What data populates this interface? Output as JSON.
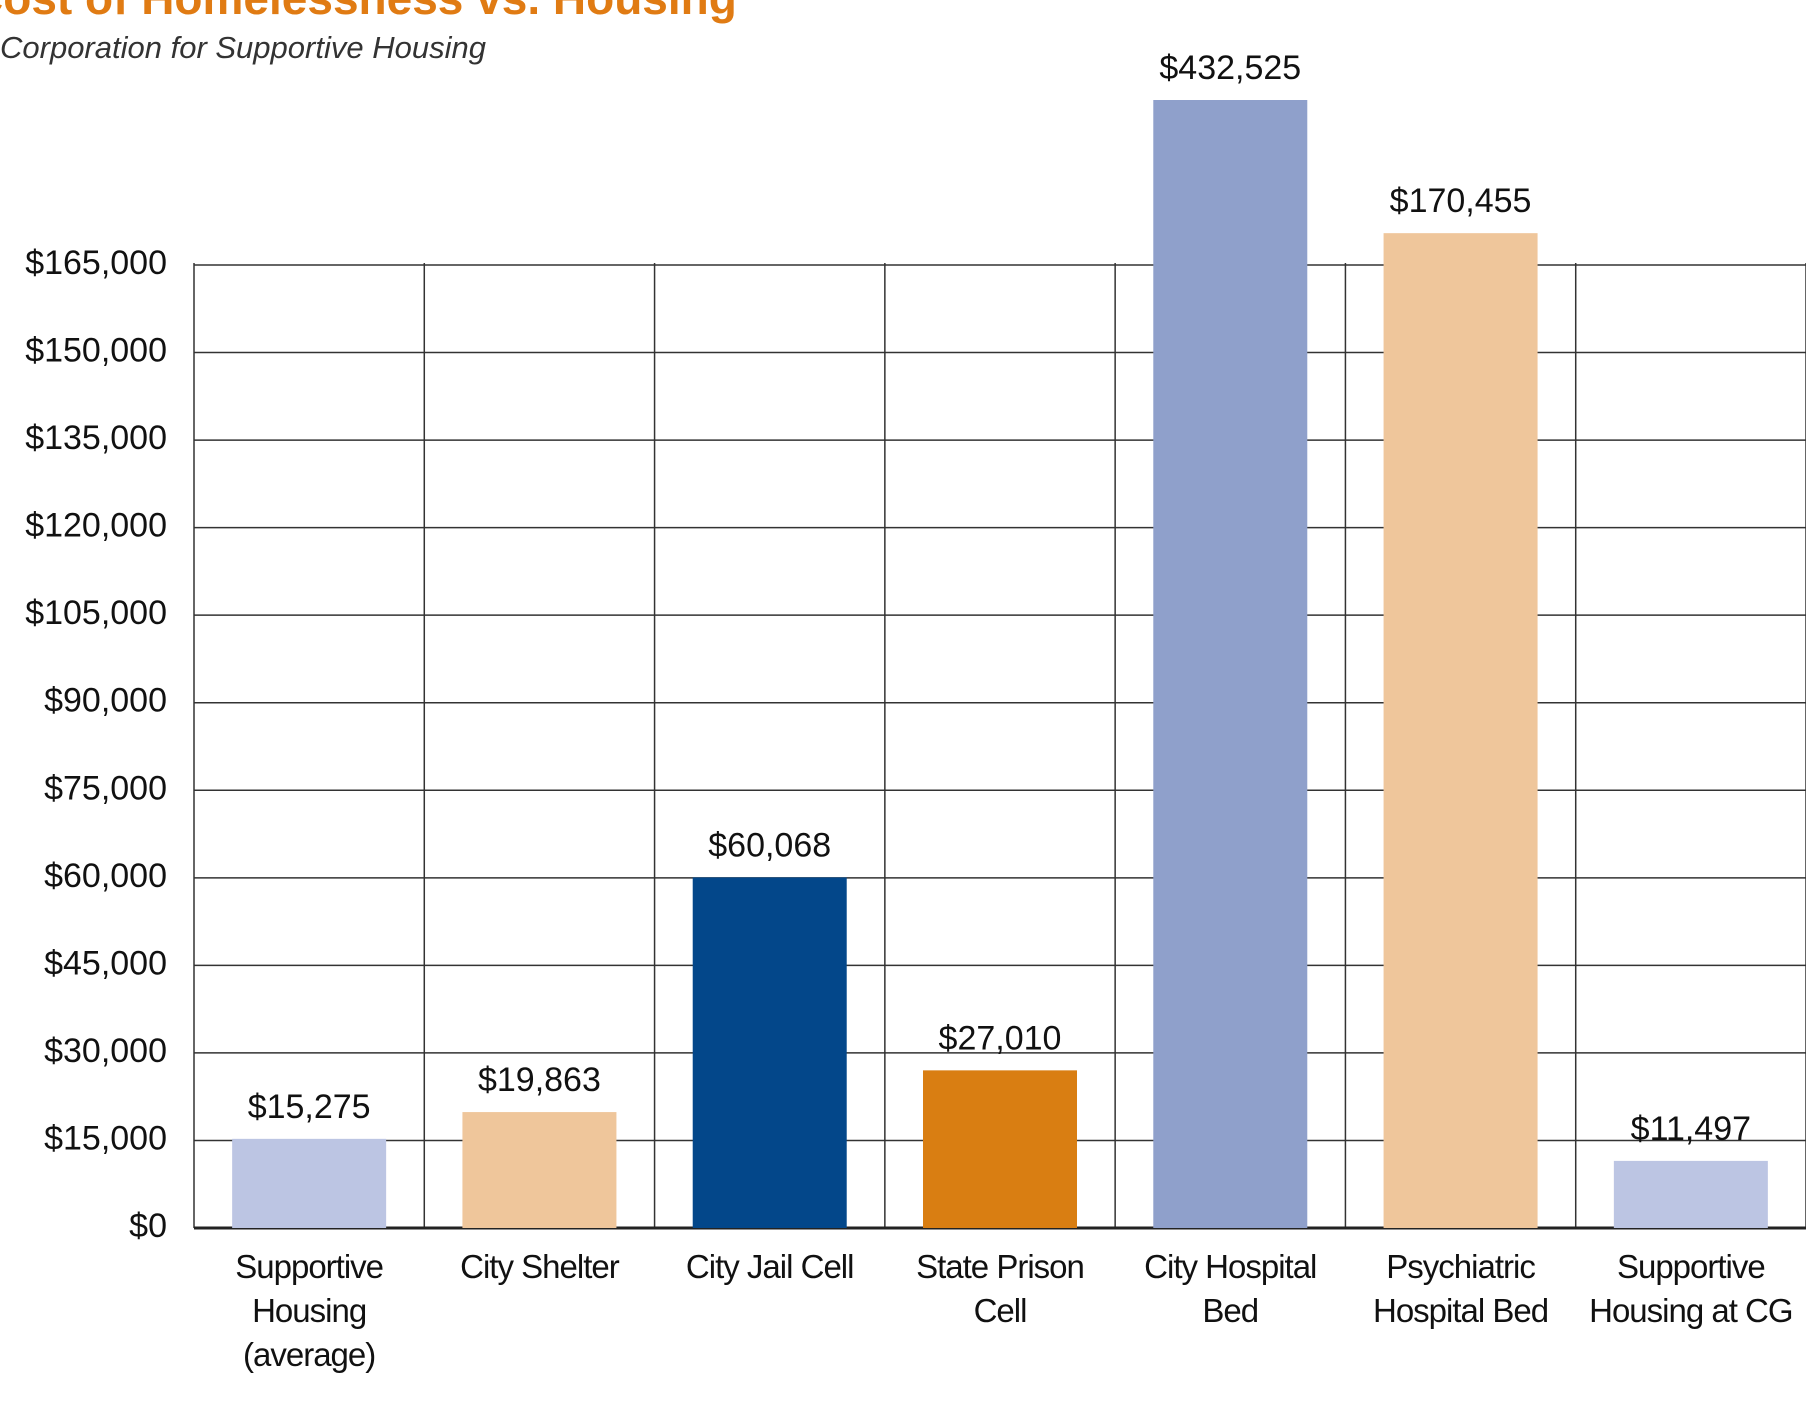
{
  "chart_data": {
    "type": "bar",
    "title": "Cost of Homelessness vs. Housing",
    "subtitle": "Corporation for Supportive Housing",
    "categories": [
      "Supportive Housing (average)",
      "City Shelter",
      "City Jail Cell",
      "State Prison Cell",
      "City Hospital Bed",
      "Psychiatric Hospital Bed",
      "Supportive Housing at CG"
    ],
    "values": [
      15275,
      19863,
      60068,
      27010,
      432525,
      170455,
      11497
    ],
    "value_labels": [
      "$15,275",
      "$19,863",
      "$60,068",
      "$27,010",
      "$432,525",
      "$170,455",
      "$11,497"
    ],
    "colors": [
      "#bcc5e3",
      "#efc69b",
      "#03478a",
      "#d97e12",
      "#8fa0cb",
      "#efc69b",
      "#bcc5e3"
    ],
    "ylim": [
      0,
      165000
    ],
    "yticks": [
      {
        "value": 0,
        "label": "$0"
      },
      {
        "value": 15000,
        "label": "$15,000"
      },
      {
        "value": 30000,
        "label": "$30,000"
      },
      {
        "value": 45000,
        "label": "$45,000"
      },
      {
        "value": 60000,
        "label": "$60,000"
      },
      {
        "value": 75000,
        "label": "$75,000"
      },
      {
        "value": 90000,
        "label": "$90,000"
      },
      {
        "value": 105000,
        "label": "$105,000"
      },
      {
        "value": 120000,
        "label": "$120,000"
      },
      {
        "value": 135000,
        "label": "$135,000"
      },
      {
        "value": 150000,
        "label": "$150,000"
      },
      {
        "value": 165000,
        "label": "$165,000"
      }
    ],
    "grid": true
  }
}
